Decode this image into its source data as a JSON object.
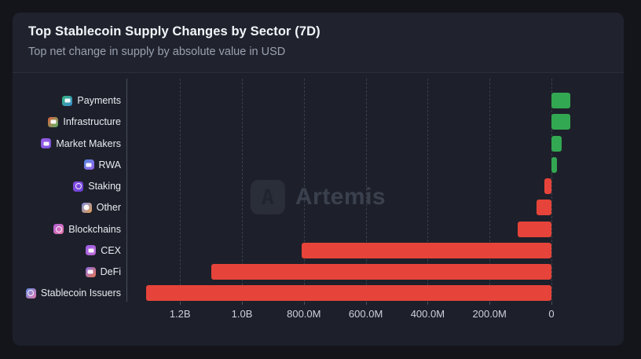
{
  "header": {
    "title": "Top Stablecoin Supply Changes by Sector (7D)",
    "subtitle": "Top net change in supply by absolute value in USD"
  },
  "watermark": {
    "text": "Artemis"
  },
  "colors": {
    "positive": "#33a852",
    "negative": "#e6443a",
    "page_bg": "#14151b",
    "card_bg": "#20232e",
    "chart_bg": "#1d202a",
    "grid": "#3a3f4c",
    "title": "#f3f5f9",
    "subtitle": "#99a0af",
    "tick_label": "#cdd1d9",
    "category_label": "#e9ebf1",
    "watermark": "#3a404d"
  },
  "chart_data": {
    "type": "bar",
    "orientation": "horizontal",
    "title": "Top Stablecoin Supply Changes by Sector (7D)",
    "subtitle": "Top net change in supply by absolute value in USD",
    "value_unit": "USD net supply change, 7 days",
    "axis": {
      "reversed": true,
      "zero_at_right": true,
      "xlim_musd": [
        1380,
        -235
      ],
      "gridlines": "dashed-vertical"
    },
    "x_ticks": [
      {
        "label": "1.2B",
        "value_musd": 1200
      },
      {
        "label": "1.0B",
        "value_musd": 1000
      },
      {
        "label": "800.0M",
        "value_musd": 800
      },
      {
        "label": "600.0M",
        "value_musd": 600
      },
      {
        "label": "400.0M",
        "value_musd": 400
      },
      {
        "label": "200.0M",
        "value_musd": 200
      },
      {
        "label": "0",
        "value_musd": 0
      }
    ],
    "categories": [
      {
        "slug": "payments",
        "label": "Payments",
        "net_change_musd": 62,
        "icon": {
          "glyph": "card",
          "from": "#35b57a",
          "to": "#3d8bd4"
        }
      },
      {
        "slug": "infrastructure",
        "label": "Infrastructure",
        "net_change_musd": 60,
        "icon": {
          "glyph": "card",
          "from": "#e0603f",
          "to": "#58b368"
        }
      },
      {
        "slug": "market-makers",
        "label": "Market Makers",
        "net_change_musd": 33,
        "icon": {
          "glyph": "card",
          "from": "#9a5fe8",
          "to": "#7a4fd8"
        }
      },
      {
        "slug": "rwa",
        "label": "RWA",
        "net_change_musd": 19,
        "icon": {
          "glyph": "card",
          "from": "#4f8ae0",
          "to": "#9a5fe8"
        }
      },
      {
        "slug": "staking",
        "label": "Staking",
        "net_change_musd": -23,
        "icon": {
          "glyph": "ring",
          "from": "#8a4fe8",
          "to": "#6a3fd0"
        }
      },
      {
        "slug": "other",
        "label": "Other",
        "net_change_musd": -49,
        "icon": {
          "glyph": "circle",
          "from": "#7a8be0",
          "to": "#e8a050"
        }
      },
      {
        "slug": "blockchains",
        "label": "Blockchains",
        "net_change_musd": -110,
        "icon": {
          "glyph": "ring",
          "from": "#b05fd8",
          "to": "#e878a8"
        }
      },
      {
        "slug": "cex",
        "label": "CEX",
        "net_change_musd": -808,
        "icon": {
          "glyph": "card",
          "from": "#9a5fe8",
          "to": "#c06ad0"
        }
      },
      {
        "slug": "defi",
        "label": "DeFi",
        "net_change_musd": -1100,
        "icon": {
          "glyph": "card",
          "from": "#8a6ae8",
          "to": "#e8784f"
        }
      },
      {
        "slug": "stablecoin-issuers",
        "label": "Stablecoin Issuers",
        "net_change_musd": -1310,
        "icon": {
          "glyph": "ring",
          "from": "#5a8ae0",
          "to": "#e878b0"
        }
      }
    ]
  }
}
